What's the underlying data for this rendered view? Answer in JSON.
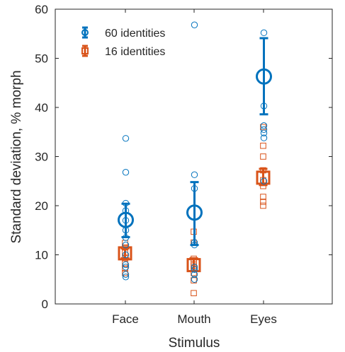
{
  "chart_data": {
    "type": "scatter",
    "title": "",
    "xlabel": "Stimulus",
    "ylabel": "Standard deviation, % morph",
    "categories": [
      "Face",
      "Mouth",
      "Eyes"
    ],
    "ylim": [
      0,
      60
    ],
    "yticks": [
      0,
      10,
      20,
      30,
      40,
      50,
      60
    ],
    "grid": false,
    "legend_position": "top-left",
    "series": [
      {
        "name": "60 identities",
        "color": "#0072BD",
        "marker": "circle",
        "points": [
          [
            5.5,
            6,
            7.5,
            8,
            10,
            12,
            13.5,
            15,
            17,
            19,
            20.5,
            26.8,
            33.7
          ],
          [
            5,
            6,
            7,
            7.5,
            12,
            12.5,
            23.5,
            26.3,
            56.8
          ],
          [
            25,
            33.8,
            34.8,
            35.5,
            36.3,
            40.3,
            55.2
          ]
        ],
        "mean": [
          17.1,
          18.6,
          46.3
        ],
        "err_low": [
          13.6,
          12.0,
          38.6
        ],
        "err_high": [
          20.4,
          24.8,
          54.1
        ]
      },
      {
        "name": "16 identities",
        "color": "#D95319",
        "marker": "square",
        "points": [
          [
            6.3,
            7.2,
            8.2,
            9.3,
            10.5,
            11.5,
            12.4
          ],
          [
            2.2,
            4.8,
            6.3,
            7.2,
            7.8,
            8.5,
            9.2,
            12.5,
            14.7
          ],
          [
            20.0,
            20.8,
            21.8,
            24.0,
            25.2,
            27.2,
            30.0,
            32.2,
            36.0
          ]
        ],
        "mean": [
          10.3,
          7.9,
          25.7
        ],
        "err_low": [
          9.3,
          6.7,
          24.2
        ],
        "err_high": [
          11.3,
          9.3,
          27.5
        ]
      }
    ]
  }
}
